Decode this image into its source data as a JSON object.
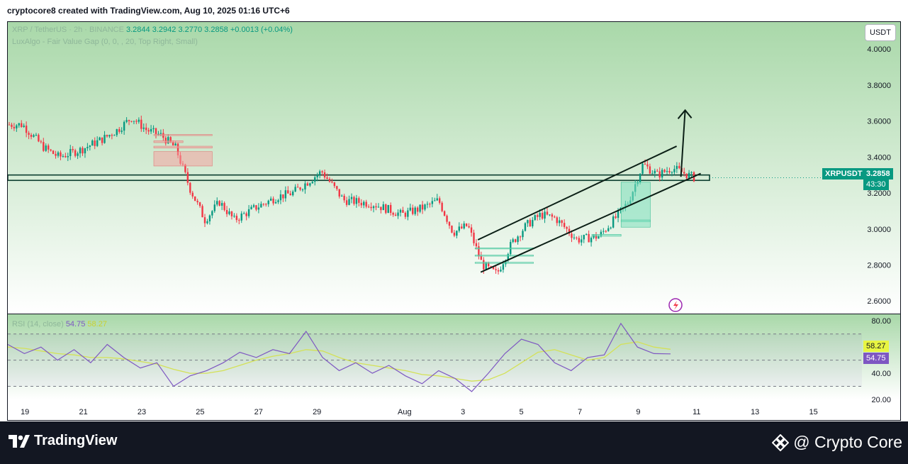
{
  "header": {
    "caption": "cryptocore8 created with TradingView.com, Aug 10, 2025 01:16 UTC+6"
  },
  "legend": {
    "symbol_line": "XRP / TetherUS · 2h · BINANCE",
    "open": "3.2844",
    "high": "3.2942",
    "low": "3.2770",
    "close": "3.2858",
    "change": "+0.0013 (+0.04%)",
    "indicator": "LuxAlgo - Fair Value Gap (0, 0, , 20, Top Right, Small)"
  },
  "currency_button": "USDT",
  "price_axis": [
    "4.0000",
    "3.8000",
    "3.6000",
    "3.4000",
    "3.2000",
    "3.0000",
    "2.8000",
    "2.6000"
  ],
  "current_price": {
    "symbol": "XRPUSDT",
    "price": "3.2858",
    "countdown": "43:30"
  },
  "rsi": {
    "label": "RSI (14, close)",
    "rsi_value": "54.75",
    "ma_value": "58.27",
    "axis": [
      "80.00",
      "40.00",
      "20.00"
    ]
  },
  "time_axis": [
    "19",
    "21",
    "23",
    "25",
    "27",
    "29",
    "Aug",
    "3",
    "5",
    "7",
    "9",
    "11",
    "13",
    "15"
  ],
  "footer": {
    "left_brand": "TradingView",
    "right_brand": "@ Crypto Core"
  },
  "colors": {
    "up": "#089981",
    "down": "#f23645",
    "rsi": "#7e57c2",
    "rsi_ma": "#d4e157",
    "bg_top": "#a9d8a9",
    "bg_bottom": "#ffffff"
  },
  "chart_data": [
    {
      "type": "candlestick",
      "symbol": "XRPUSDT",
      "ylim": [
        2.53,
        4.15
      ],
      "x_ticks": [
        "19",
        "21",
        "23",
        "25",
        "27",
        "29",
        "Aug",
        "3",
        "5",
        "7",
        "9",
        "11",
        "13",
        "15"
      ],
      "close_path": [
        {
          "d": "Jul 18",
          "v": 3.58
        },
        {
          "d": "Jul 19",
          "v": 3.45
        },
        {
          "d": "Jul 19",
          "v": 3.4
        },
        {
          "d": "Jul 20",
          "v": 3.44
        },
        {
          "d": "Jul 21",
          "v": 3.5
        },
        {
          "d": "Jul 21",
          "v": 3.55
        },
        {
          "d": "Jul 22",
          "v": 3.62
        },
        {
          "d": "Jul 22",
          "v": 3.55
        },
        {
          "d": "Jul 23",
          "v": 3.52
        },
        {
          "d": "Jul 23",
          "v": 3.45
        },
        {
          "d": "Jul 24",
          "v": 3.22
        },
        {
          "d": "Jul 24",
          "v": 3.05
        },
        {
          "d": "Jul 25",
          "v": 3.15
        },
        {
          "d": "Jul 25",
          "v": 3.05
        },
        {
          "d": "Jul 26",
          "v": 3.12
        },
        {
          "d": "Jul 27",
          "v": 3.18
        },
        {
          "d": "Jul 27",
          "v": 3.2
        },
        {
          "d": "Jul 28",
          "v": 3.26
        },
        {
          "d": "Jul 28",
          "v": 3.32
        },
        {
          "d": "Jul 29",
          "v": 3.16
        },
        {
          "d": "Jul 30",
          "v": 3.14
        },
        {
          "d": "Jul 31",
          "v": 3.08
        },
        {
          "d": "Aug 1",
          "v": 3.12
        },
        {
          "d": "Aug 1",
          "v": 3.16
        },
        {
          "d": "Aug 2",
          "v": 2.98
        },
        {
          "d": "Aug 2",
          "v": 3.02
        },
        {
          "d": "Aug 3",
          "v": 2.8
        },
        {
          "d": "Aug 3",
          "v": 2.75
        },
        {
          "d": "Aug 4",
          "v": 2.92
        },
        {
          "d": "Aug 4",
          "v": 3.02
        },
        {
          "d": "Aug 5",
          "v": 3.08
        },
        {
          "d": "Aug 5",
          "v": 3.06
        },
        {
          "d": "Aug 6",
          "v": 2.94
        },
        {
          "d": "Aug 7",
          "v": 2.96
        },
        {
          "d": "Aug 7",
          "v": 3.05
        },
        {
          "d": "Aug 8",
          "v": 3.15
        },
        {
          "d": "Aug 8",
          "v": 3.36
        },
        {
          "d": "Aug 9",
          "v": 3.3
        },
        {
          "d": "Aug 9",
          "v": 3.34
        },
        {
          "d": "Aug 10",
          "v": 3.2858
        }
      ],
      "horizontal_zone": [
        3.27,
        3.3
      ],
      "channel_upper": [
        {
          "d": "Aug 3",
          "v": 2.94
        },
        {
          "d": "Aug 10",
          "v": 3.46
        }
      ],
      "channel_lower": [
        {
          "d": "Aug 3",
          "v": 2.76
        },
        {
          "d": "Aug 10",
          "v": 3.34
        }
      ],
      "projection_arrow": [
        {
          "d": "Aug 10",
          "v": 3.29
        },
        {
          "d": "Aug 10",
          "v": 3.66
        }
      ]
    },
    {
      "type": "line",
      "name": "RSI (14, close)",
      "ylim": [
        20,
        85
      ],
      "bands": [
        70,
        50,
        30
      ],
      "rsi": [
        62,
        55,
        60,
        50,
        58,
        48,
        62,
        52,
        44,
        48,
        30,
        38,
        42,
        48,
        56,
        52,
        58,
        55,
        72,
        52,
        42,
        48,
        40,
        46,
        38,
        32,
        42,
        36,
        26,
        40,
        55,
        66,
        62,
        48,
        42,
        52,
        54,
        78,
        60,
        55,
        54.75
      ],
      "ma": [
        60,
        59,
        57,
        55,
        54,
        52,
        52,
        51,
        49,
        47,
        43,
        40,
        40,
        42,
        46,
        50,
        53,
        55,
        58,
        57,
        52,
        48,
        46,
        44,
        42,
        39,
        38,
        36,
        34,
        35,
        40,
        48,
        56,
        58,
        54,
        50,
        52,
        62,
        64,
        60,
        58.27
      ]
    }
  ]
}
